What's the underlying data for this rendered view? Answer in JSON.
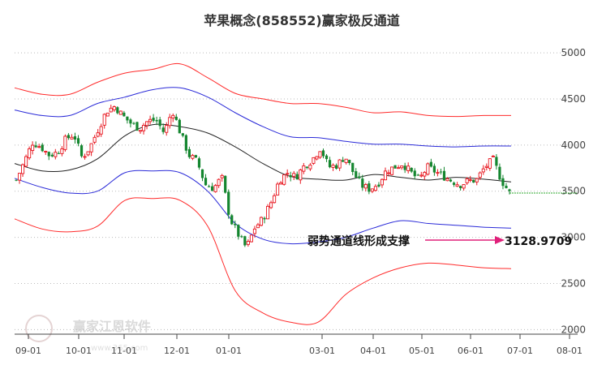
{
  "chart_data": {
    "type": "candlestick",
    "title": "苹果概念(858552)赢家极反通道",
    "x_ticks": [
      "09-01",
      "10-01",
      "11-01",
      "12-01",
      "01-01",
      "03-01",
      "04-01",
      "05-01",
      "06-01",
      "07-01",
      "08-01"
    ],
    "y_ticks": [
      2000,
      2500,
      3000,
      3500,
      4000,
      4500,
      5000
    ],
    "ylim": [
      1950,
      5150
    ],
    "grid": "horizontal-dotted",
    "annotation": {
      "label": "弱势通道线形成支撑",
      "value": "3128.9709",
      "arrow_color": "#e0207a"
    },
    "last_price_level": 3480,
    "colors": {
      "up": "#e8161f",
      "down": "#14862f",
      "outer_band": "#ff2a2a",
      "inner_band": "#2a2ad8",
      "middle_line": "#222222",
      "dashed_level": "#2ea82e"
    },
    "middle_line": [
      3800,
      3720,
      3730,
      3850,
      4100,
      4220,
      4200,
      4130,
      3980,
      3800,
      3660,
      3630,
      3620,
      3680,
      3650,
      3620,
      3650,
      3630,
      3600
    ],
    "inner_upper": [
      4380,
      4320,
      4320,
      4450,
      4520,
      4600,
      4620,
      4520,
      4350,
      4200,
      4090,
      4080,
      4040,
      4010,
      4010,
      3990,
      3980,
      3990,
      3990
    ],
    "inner_lower": [
      3640,
      3540,
      3480,
      3500,
      3700,
      3720,
      3700,
      3500,
      3150,
      2980,
      2930,
      2950,
      3000,
      3100,
      3180,
      3150,
      3130,
      3110,
      3100
    ],
    "outer_upper": [
      4620,
      4550,
      4550,
      4680,
      4780,
      4820,
      4880,
      4730,
      4560,
      4500,
      4450,
      4450,
      4410,
      4350,
      4360,
      4320,
      4310,
      4320,
      4320
    ],
    "outer_lower": [
      3200,
      3090,
      3060,
      3120,
      3400,
      3420,
      3400,
      3120,
      2420,
      2180,
      2080,
      2080,
      2380,
      2560,
      2670,
      2720,
      2700,
      2670,
      2660
    ],
    "close_path": [
      3620,
      3820,
      4030,
      3980,
      3890,
      3920,
      4060,
      4120,
      3860,
      3980,
      4180,
      4370,
      4420,
      4310,
      4230,
      4180,
      4260,
      4270,
      4130,
      4380,
      4120,
      3890,
      3820,
      3570,
      3530,
      3650,
      3200,
      3030,
      2880,
      3100,
      3200,
      3380,
      3620,
      3700,
      3650,
      3770,
      3840,
      3970,
      3760,
      3780,
      3880,
      3700,
      3560,
      3520,
      3580,
      3720,
      3760,
      3800,
      3700,
      3620,
      3760,
      3710,
      3660,
      3610,
      3570,
      3610,
      3620,
      3760,
      3840,
      3620,
      3480
    ]
  }
}
